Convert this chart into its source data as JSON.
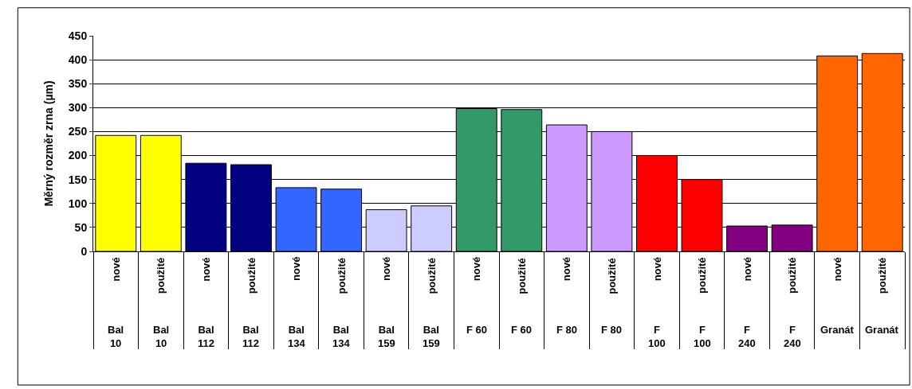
{
  "chart_data": {
    "type": "bar",
    "ylabel": "Měrný rozměr zrna (µm)",
    "categories": [
      "nové\nBal\n10",
      "použité\nBal\n10",
      "nové\nBal\n112",
      "použité\nBal\n112",
      "nové\nBal\n134",
      "použité\nBal\n134",
      "nové\nBal\n159",
      "použité\nBal\n159",
      "nové\nF 60",
      "použité\nF 60",
      "nové\nF 80",
      "použité\nF 80",
      "nové\nF\n100",
      "použité\nF\n100",
      "nové\nF\n240",
      "použité\nF\n240",
      "nové\nGranát",
      "použité\nGranát"
    ],
    "values": [
      242,
      242,
      184,
      181,
      133,
      130,
      87,
      95,
      298,
      296,
      264,
      250,
      200,
      150,
      53,
      55,
      408,
      413
    ],
    "colors": [
      "#ffff00",
      "#ffff00",
      "#000080",
      "#000080",
      "#3366ff",
      "#3366ff",
      "#ccccff",
      "#ccccff",
      "#339966",
      "#339966",
      "#cc99ff",
      "#cc99ff",
      "#ff0000",
      "#ff0000",
      "#800080",
      "#800080",
      "#ff6600",
      "#ff6600"
    ],
    "ylim": [
      0,
      450
    ],
    "yticks": [
      0,
      50,
      100,
      150,
      200,
      250,
      300,
      350,
      400,
      450
    ],
    "grid": "y",
    "legend": false
  }
}
